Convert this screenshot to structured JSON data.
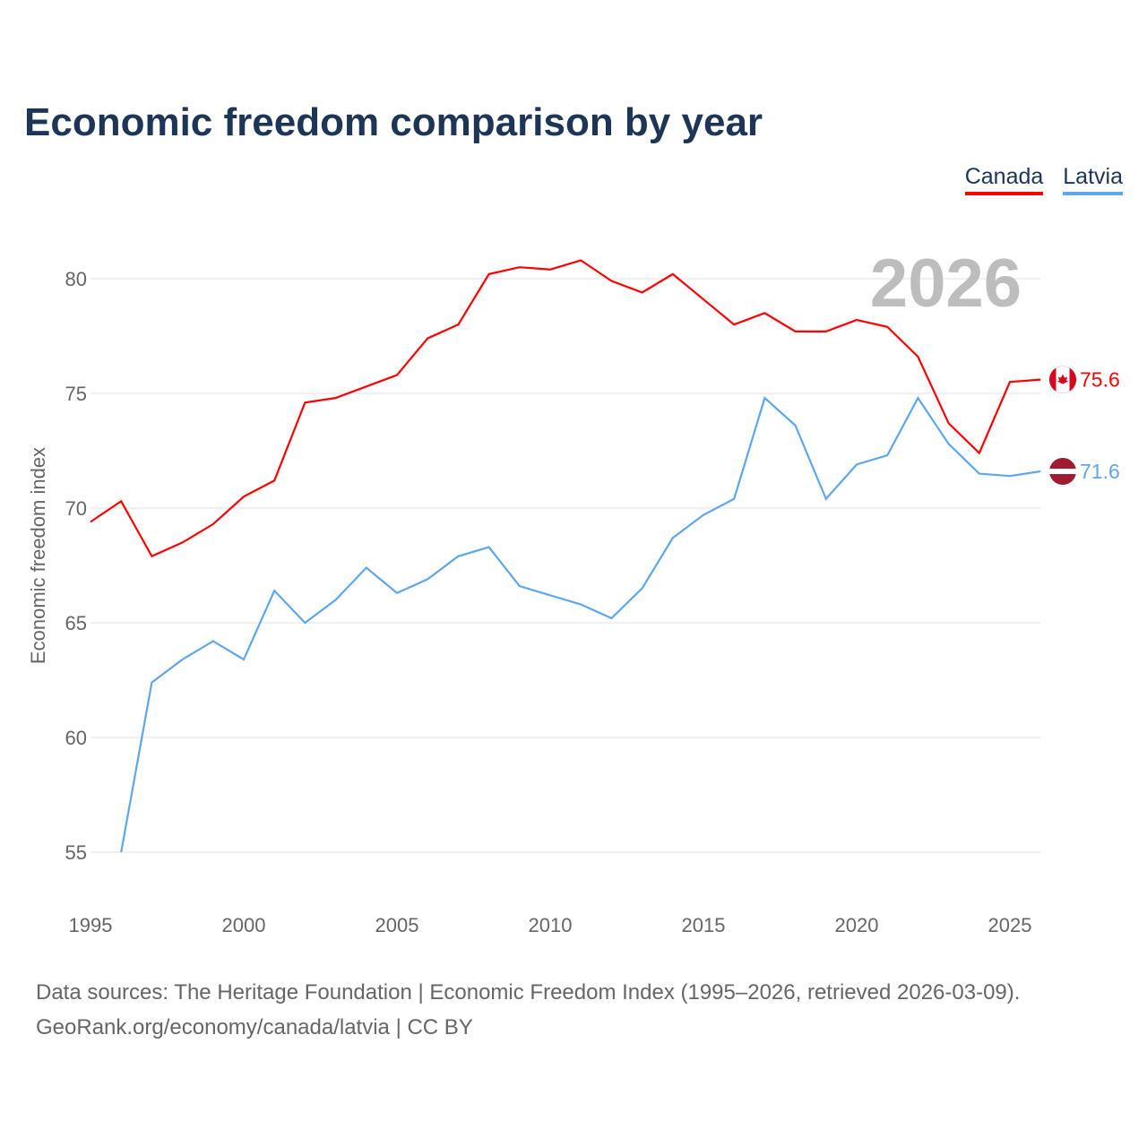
{
  "chart_data": {
    "type": "line",
    "title": "Economic freedom comparison by year",
    "ylabel": "Economic freedom index",
    "xlabel": "",
    "xlim": [
      1995,
      2026
    ],
    "ylim": [
      53,
      83
    ],
    "xticks": [
      1995,
      2000,
      2005,
      2010,
      2015,
      2020,
      2025
    ],
    "yticks": [
      55,
      60,
      65,
      70,
      75,
      80
    ],
    "grid": true,
    "legend_placement": "top-right",
    "year_label": "2026",
    "series": [
      {
        "name": "Canada",
        "color": "#ff0000",
        "x": [
          1995,
          1996,
          1997,
          1998,
          1999,
          2000,
          2001,
          2002,
          2003,
          2004,
          2005,
          2006,
          2007,
          2008,
          2009,
          2010,
          2011,
          2012,
          2013,
          2014,
          2015,
          2016,
          2017,
          2018,
          2019,
          2020,
          2021,
          2022,
          2023,
          2024,
          2025,
          2026
        ],
        "values": [
          69.4,
          70.3,
          67.9,
          68.5,
          69.3,
          70.5,
          71.2,
          74.6,
          74.8,
          75.3,
          75.8,
          77.4,
          78.0,
          80.2,
          80.5,
          80.4,
          80.8,
          79.9,
          79.4,
          80.2,
          79.1,
          78.0,
          78.5,
          77.7,
          77.7,
          78.2,
          77.9,
          76.6,
          73.7,
          72.4,
          75.5,
          75.6
        ],
        "end_label": "75.6"
      },
      {
        "name": "Latvia",
        "color": "#5ea7ea",
        "x": [
          1996,
          1997,
          1998,
          1999,
          2000,
          2001,
          2002,
          2003,
          2004,
          2005,
          2006,
          2007,
          2008,
          2009,
          2010,
          2011,
          2012,
          2013,
          2014,
          2015,
          2016,
          2017,
          2018,
          2019,
          2020,
          2021,
          2022,
          2023,
          2024,
          2025,
          2026
        ],
        "values": [
          55.0,
          62.4,
          63.4,
          64.2,
          63.4,
          66.4,
          65.0,
          66.0,
          67.4,
          66.3,
          66.9,
          67.9,
          68.3,
          66.6,
          66.2,
          65.8,
          65.2,
          66.5,
          68.7,
          69.7,
          70.4,
          74.8,
          73.6,
          70.4,
          71.9,
          72.3,
          74.8,
          72.8,
          71.5,
          71.4,
          71.6
        ],
        "end_label": "71.6"
      }
    ]
  },
  "source_line1": "Data sources: The Heritage Foundation | Economic Freedom Index (1995–2026, retrieved 2026-03-09).",
  "source_line2": "GeoRank.org/economy/canada/latvia | CC BY"
}
